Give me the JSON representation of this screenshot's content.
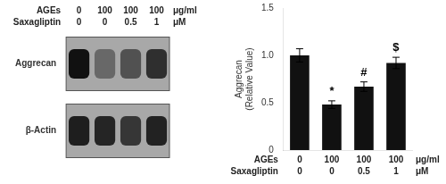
{
  "chart_data": [
    {
      "type": "heatmap",
      "x_rows": [
        {
          "name": "AGEs",
          "labels": [
            "0",
            "100",
            "100",
            "100"
          ],
          "unit": "μg/ml"
        },
        {
          "name": "Saxagliptin",
          "labels": [
            "0",
            "0",
            "0.5",
            "1"
          ],
          "unit": "μM"
        }
      ],
      "rows": [
        "Aggrecan",
        "β-Actin"
      ],
      "cells": [
        [
          0.9,
          0.38,
          0.52,
          0.72
        ],
        [
          0.82,
          0.78,
          0.68,
          0.8
        ]
      ],
      "color": "#a8a8a8"
    },
    {
      "type": "bar",
      "x_rows": [
        {
          "name": "AGEs",
          "labels": [
            "0",
            "100",
            "100",
            "100"
          ],
          "unit": "μg/ml"
        },
        {
          "name": "Saxagliptin",
          "labels": [
            "0",
            "0",
            "0.5",
            "1"
          ],
          "unit": "μM"
        }
      ],
      "values": [
        1.0,
        0.48,
        0.67,
        0.92
      ],
      "errors": [
        0.07,
        0.04,
        0.05,
        0.06
      ],
      "color": "#111111",
      "ylabel": "Aggrecan\n(Relative Value)",
      "ylim": [
        0,
        1.5
      ],
      "yticks": [
        0,
        0.5,
        {
          "value": 1.0,
          "label": "1.0"
        },
        1.5
      ],
      "annotations": [
        {
          "index": 1,
          "text": "*"
        },
        {
          "index": 2,
          "text": "#"
        },
        {
          "index": 3,
          "text": "$"
        }
      ],
      "grid": false
    }
  ]
}
